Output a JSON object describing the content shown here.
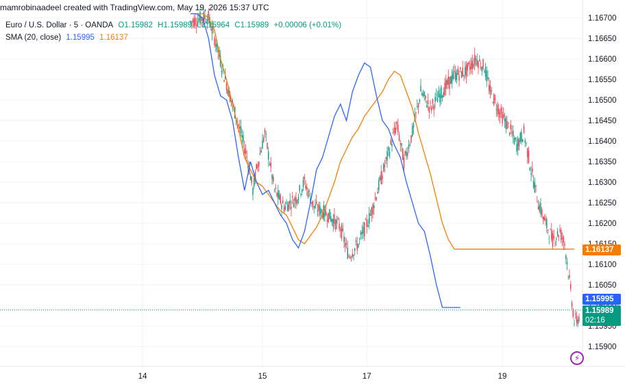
{
  "attribution": "mamrobinaadeel created with TradingView.com, May 19, 2026 15:37 UTC",
  "legend": {
    "symbol": "Euro / U.S. Dollar · 5 · OANDA",
    "open": "O1.15982",
    "high": "H1.15989",
    "low": "L1.15964",
    "close": "C1.15989",
    "change": "+0.00006 (+0.01%)",
    "sma_label": "SMA (20, close)",
    "sma_fast_value": "1.15995",
    "sma_slow_value": "1.16137"
  },
  "price_tags": {
    "sma_slow": "1.16137",
    "sma_fast": "1.15995",
    "last": "1.15989",
    "countdown": "02:16"
  },
  "colors": {
    "up": "#089981",
    "down": "#f23645",
    "sma_fast": "#2962ff",
    "sma_slow": "#f57c00",
    "grid": "#f0f3fa",
    "accent": "#9c27b0"
  },
  "icons": {
    "replay": "lightning-bolt-icon"
  },
  "chart_data": {
    "type": "candlestick",
    "title": "",
    "xlabel": "",
    "ylabel": "",
    "ylim": [
      1.1587,
      1.167
    ],
    "y_ticks": [
      "1.16700",
      "1.16650",
      "1.16600",
      "1.16550",
      "1.16500",
      "1.16450",
      "1.16400",
      "1.16350",
      "1.16300",
      "1.16250",
      "1.16200",
      "1.16150",
      "1.16100",
      "1.16050",
      "1.16000",
      "1.15950",
      "1.15900"
    ],
    "y_tick_values": [
      1.167,
      1.1665,
      1.166,
      1.1655,
      1.165,
      1.1645,
      1.164,
      1.1635,
      1.163,
      1.1625,
      1.162,
      1.1615,
      1.161,
      1.1605,
      1.16,
      1.1595,
      1.159
    ],
    "x_ticks": [
      "14",
      "15",
      "17",
      "19"
    ],
    "x_tick_index": [
      -40,
      60,
      147,
      260
    ],
    "grid": true,
    "last_price": 1.15989,
    "series": [
      {
        "name": "SMA (20, close)",
        "role": "sma_slow",
        "x": [
          0,
          5,
          10,
          15,
          20,
          25,
          30,
          35,
          40,
          45,
          50,
          55,
          60,
          65,
          70,
          75,
          80,
          85,
          90,
          95,
          100,
          105,
          110,
          115,
          120,
          125,
          130,
          135,
          140,
          145,
          150,
          155,
          160,
          165,
          170,
          175,
          180,
          185,
          190,
          195,
          200,
          205,
          210,
          215,
          220,
          225,
          230,
          235,
          240,
          245,
          250,
          255,
          260,
          265,
          270,
          275,
          280,
          285,
          290,
          295,
          300,
          305,
          310,
          315,
          320,
          325
        ],
        "values": [
          1.1671,
          1.1671,
          1.1671,
          1.167,
          1.1667,
          1.166,
          1.1655,
          1.1649,
          1.1643,
          1.1636,
          1.1633,
          1.163,
          1.1629,
          1.1627,
          1.1625,
          1.1623,
          1.1622,
          1.1619,
          1.1616,
          1.1615,
          1.1617,
          1.1619,
          1.1622,
          1.1626,
          1.163,
          1.1635,
          1.1638,
          1.1641,
          1.1643,
          1.1646,
          1.1648,
          1.165,
          1.1652,
          1.1655,
          1.1657,
          1.1656,
          1.1652,
          1.1648,
          1.1642,
          1.1637,
          1.1632,
          1.1626,
          1.162,
          1.1616,
          1.16137,
          1.16137,
          1.16137,
          1.16137,
          1.16137,
          1.16137,
          1.16137,
          1.16137,
          1.16137,
          1.16137,
          1.16137,
          1.16137,
          1.16137,
          1.16137,
          1.16137,
          1.16137,
          1.16137,
          1.16137,
          1.16137,
          1.16137,
          1.16137,
          1.16137
        ]
      },
      {
        "name": "SMA (20, close)",
        "role": "sma_fast",
        "x": [
          0,
          5,
          10,
          15,
          20,
          25,
          30,
          35,
          40,
          45,
          50,
          55,
          60,
          65,
          70,
          75,
          80,
          85,
          90,
          95,
          100,
          105,
          110,
          115,
          120,
          125,
          130,
          135,
          140,
          145,
          150,
          155,
          160,
          165,
          170,
          175,
          180,
          185,
          190,
          195,
          200,
          205,
          210,
          215,
          220,
          225
        ],
        "values": [
          1.1671,
          1.1671,
          1.167,
          1.1665,
          1.1656,
          1.1651,
          1.165,
          1.1645,
          1.1636,
          1.1628,
          1.1635,
          1.163,
          1.1627,
          1.1628,
          1.1625,
          1.1622,
          1.162,
          1.1616,
          1.1614,
          1.1618,
          1.1625,
          1.1633,
          1.1636,
          1.1641,
          1.1646,
          1.1649,
          1.1645,
          1.1652,
          1.1656,
          1.1659,
          1.1658,
          1.1651,
          1.1645,
          1.1643,
          1.1639,
          1.1636,
          1.163,
          1.1625,
          1.162,
          1.1618,
          1.1612,
          1.1605,
          1.15995,
          1.15995,
          1.15995,
          1.15995
        ]
      }
    ]
  }
}
